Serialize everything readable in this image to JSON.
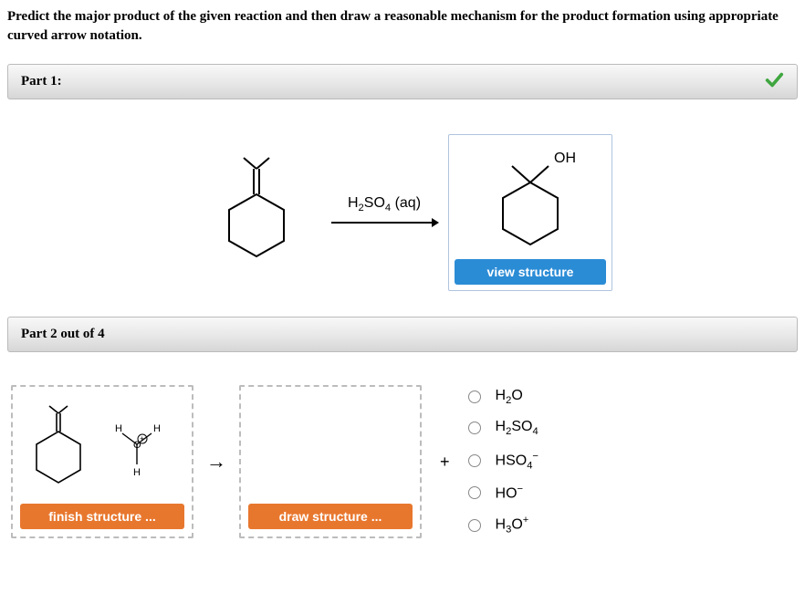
{
  "prompt": "Predict the major product of the given reaction and then draw a reasonable mechanism for the product formation using appropriate curved arrow notation.",
  "part1": {
    "title": "Part 1:",
    "reagent_html": "H<sub>2</sub>SO<sub>4</sub> (aq)",
    "view_btn": "view structure",
    "oh_label": "OH"
  },
  "part2": {
    "title": "Part 2 out of 4",
    "finish_btn": "finish structure ...",
    "draw_btn": "draw structure ...",
    "options": [
      "H<sub>2</sub>O",
      "H<sub>2</sub>SO<sub>4</sub>",
      "HSO<sub>4</sub><sup>&#8722;</sup>",
      "HO<sup>&#8722;</sup>",
      "H<sub>3</sub>O<sup>+</sup>"
    ]
  },
  "colors": {
    "blue_btn": "#2b8cd6",
    "orange_btn": "#e8772e",
    "check": "#3fa63f"
  }
}
